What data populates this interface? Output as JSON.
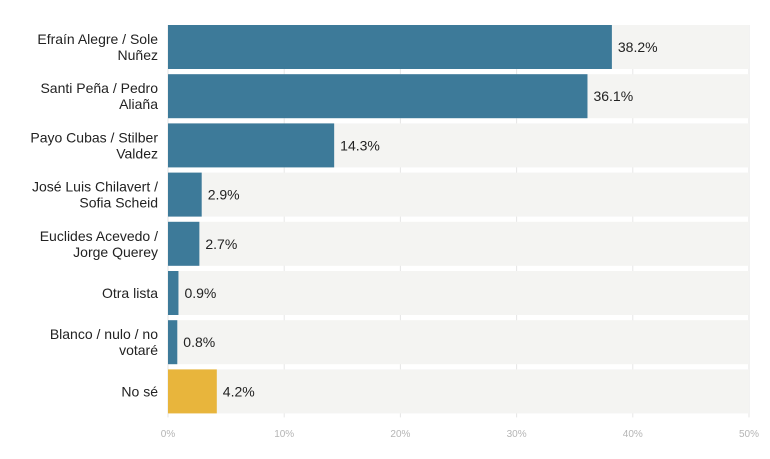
{
  "chart_data": {
    "type": "bar",
    "orientation": "horizontal",
    "title": "",
    "xlabel": "",
    "ylabel": "",
    "xlim": [
      0,
      50
    ],
    "grid": true,
    "categories": [
      [
        "Efraín Alegre / Sole",
        "Nuñez"
      ],
      [
        "Santi Peña / Pedro",
        "Aliaña"
      ],
      [
        "Payo Cubas / Stilber",
        "Valdez"
      ],
      [
        "José Luis Chilavert /",
        "Sofia Scheid"
      ],
      [
        "Euclides Acevedo /",
        "Jorge Querey"
      ],
      [
        "Otra lista"
      ],
      [
        "Blanco / nulo / no",
        "votaré"
      ],
      [
        "No sé"
      ]
    ],
    "values": [
      38.2,
      36.1,
      14.3,
      2.9,
      2.7,
      0.9,
      0.8,
      4.2
    ],
    "value_labels": [
      "38.2%",
      "36.1%",
      "14.3%",
      "2.9%",
      "2.7%",
      "0.9%",
      "0.8%",
      "4.2%"
    ],
    "bar_colors": [
      "#3d7a99",
      "#3d7a99",
      "#3d7a99",
      "#3d7a99",
      "#3d7a99",
      "#3d7a99",
      "#3d7a99",
      "#e8b53c"
    ],
    "track_color": "#f4f4f2",
    "ticks": [
      0,
      10,
      20,
      30,
      40,
      50
    ],
    "tick_labels": [
      "0%",
      "10%",
      "20%",
      "30%",
      "40%",
      "50%"
    ]
  }
}
